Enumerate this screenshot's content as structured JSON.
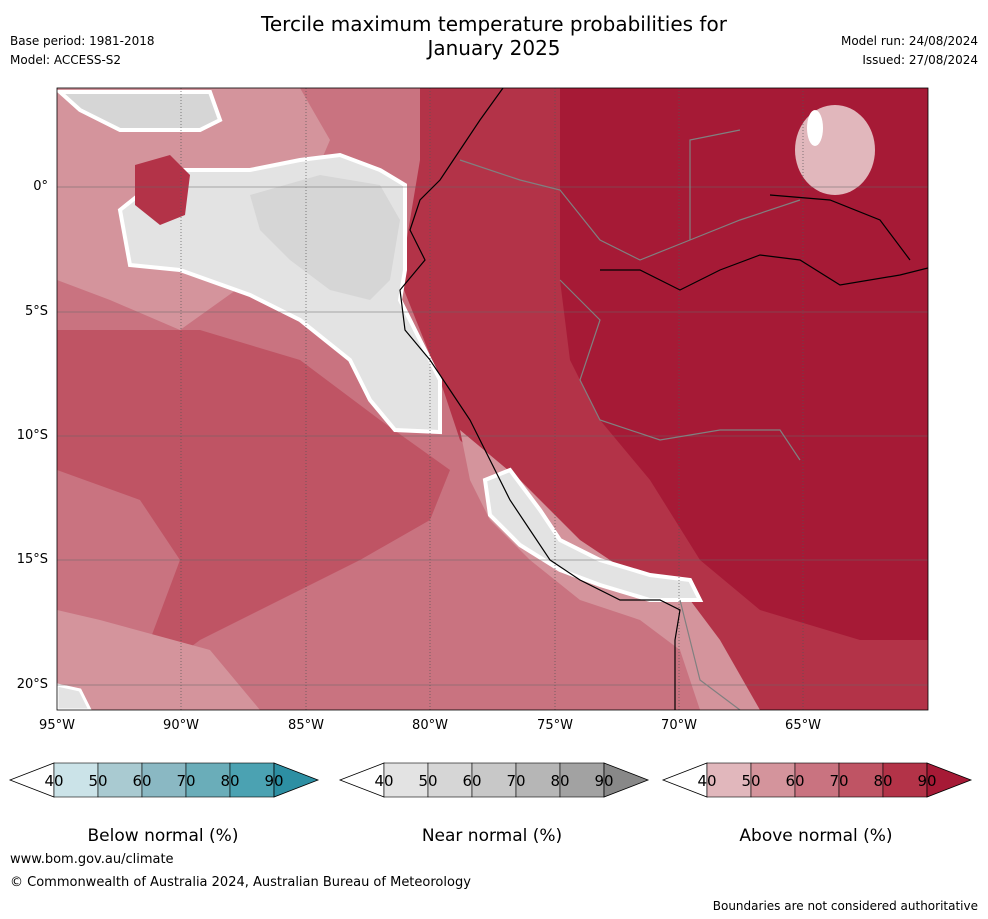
{
  "title": {
    "line1": "Tercile maximum temperature probabilities for",
    "line2": "January 2025"
  },
  "meta_left": {
    "base_period": "Base period: 1981-2018",
    "model": "Model: ACCESS-S2"
  },
  "meta_right": {
    "model_run": "Model run: 24/08/2024",
    "issued": "Issued: 27/08/2024"
  },
  "map": {
    "lat_labels": [
      "0°",
      "5°S",
      "10°S",
      "15°S",
      "20°S"
    ],
    "lon_labels": [
      "95°W",
      "90°W",
      "85°W",
      "80°W",
      "75°W",
      "70°W",
      "65°W"
    ]
  },
  "colorbars": [
    {
      "title": "Below normal (%)",
      "ticks": [
        "40",
        "50",
        "60",
        "70",
        "80",
        "90"
      ],
      "colors": [
        "#ffffff",
        "#cbe3e8",
        "#a9cad1",
        "#8ab8c3",
        "#6aadb9",
        "#4ba2b2",
        "#2d8fa3"
      ]
    },
    {
      "title": "Near normal (%)",
      "ticks": [
        "40",
        "50",
        "60",
        "70",
        "80",
        "90"
      ],
      "colors": [
        "#ffffff",
        "#e3e3e3",
        "#d6d6d6",
        "#c8c8c8",
        "#b6b6b6",
        "#a2a2a2",
        "#888888"
      ]
    },
    {
      "title": "Above normal (%)",
      "ticks": [
        "40",
        "50",
        "60",
        "70",
        "80",
        "90"
      ],
      "colors": [
        "#ffffff",
        "#e1b7bc",
        "#d4949c",
        "#c97380",
        "#bf5464",
        "#b33348",
        "#a61a36"
      ]
    }
  ],
  "footer": {
    "url": "www.bom.gov.au/climate",
    "copyright": "© Commonwealth of Australia 2024, Australian Bureau of Meteorology",
    "note": "Boundaries are not considered authoritative"
  }
}
